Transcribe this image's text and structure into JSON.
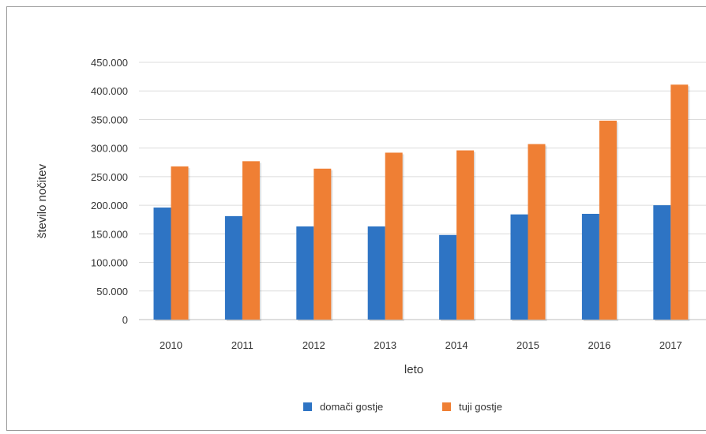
{
  "chart_data": {
    "type": "bar",
    "title": "",
    "xlabel": "leto",
    "ylabel": "število nočitev",
    "categories": [
      "2010",
      "2011",
      "2012",
      "2013",
      "2014",
      "2015",
      "2016",
      "2017"
    ],
    "series": [
      {
        "name": "domači gostje",
        "color": "#2e74c4",
        "values": [
          196000,
          181000,
          163000,
          163000,
          148000,
          184000,
          185000,
          200000
        ]
      },
      {
        "name": "tuji gostje",
        "color": "#ef7f34",
        "values": [
          268000,
          277000,
          264000,
          292000,
          296000,
          307000,
          348000,
          411000
        ]
      }
    ],
    "ylim": [
      0,
      450000
    ],
    "yticks": [
      "0",
      "50.000",
      "100.000",
      "150.000",
      "200.000",
      "250.000",
      "300.000",
      "350.000",
      "400.000",
      "450.000"
    ],
    "grid": true,
    "legend_position": "bottom"
  }
}
